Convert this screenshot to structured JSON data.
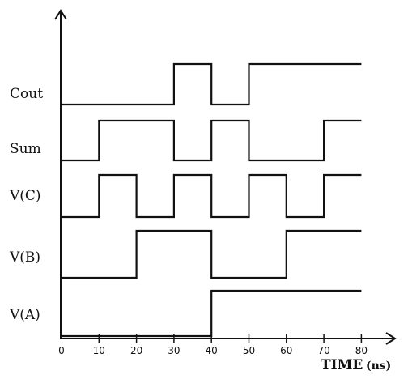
{
  "diagram": {
    "time_axis_label": "TIME",
    "time_unit_label": "(ns)",
    "origin_label": "0",
    "x_ticks": [
      "10",
      "20",
      "30",
      "40",
      "50",
      "60",
      "70",
      "80"
    ],
    "signals": [
      {
        "name": "Cout",
        "waveform": [
          [
            0,
            0
          ],
          [
            30,
            1
          ],
          [
            40,
            0
          ],
          [
            50,
            1
          ],
          [
            80,
            1
          ]
        ]
      },
      {
        "name": "Sum",
        "waveform": [
          [
            0,
            0
          ],
          [
            10,
            1
          ],
          [
            30,
            0
          ],
          [
            40,
            1
          ],
          [
            50,
            0
          ],
          [
            70,
            1
          ],
          [
            80,
            1
          ]
        ]
      },
      {
        "name": "V(C)",
        "waveform": [
          [
            0,
            0
          ],
          [
            10,
            1
          ],
          [
            20,
            0
          ],
          [
            30,
            1
          ],
          [
            40,
            0
          ],
          [
            50,
            1
          ],
          [
            60,
            0
          ],
          [
            70,
            1
          ],
          [
            80,
            1
          ]
        ]
      },
      {
        "name": "V(B)",
        "waveform": [
          [
            0,
            0
          ],
          [
            20,
            1
          ],
          [
            40,
            0
          ],
          [
            60,
            1
          ],
          [
            80,
            1
          ]
        ]
      },
      {
        "name": "V(A)",
        "waveform": [
          [
            0,
            0
          ],
          [
            40,
            1
          ],
          [
            80,
            1
          ]
        ]
      }
    ],
    "colors": {
      "ink": "#111111",
      "background": "#ffffff"
    }
  }
}
